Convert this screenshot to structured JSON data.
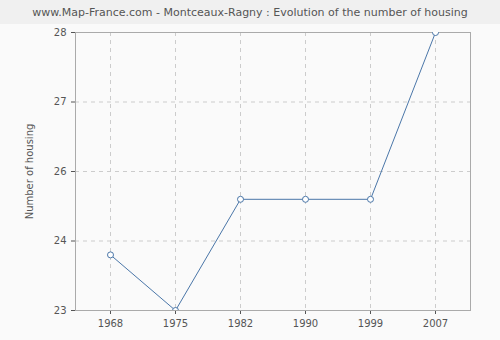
{
  "chart_data": {
    "type": "line",
    "title": "www.Map-France.com - Montceaux-Ragny : Evolution of the number of housing",
    "y_label": "Number of housing",
    "categories": [
      "1968",
      "1975",
      "1982",
      "1990",
      "1999",
      "2007"
    ],
    "values": [
      24,
      23,
      25,
      25,
      25,
      28
    ],
    "color": "#4a76a8",
    "marker": "circle",
    "line_style": "solid",
    "ylim": [
      23,
      28
    ],
    "yticks": [
      23,
      {
        "value": 24.25,
        "label": "24"
      },
      {
        "value": 25.5,
        "label": "26"
      },
      {
        "value": 26.75,
        "label": "27"
      },
      28
    ],
    "grid": true
  }
}
